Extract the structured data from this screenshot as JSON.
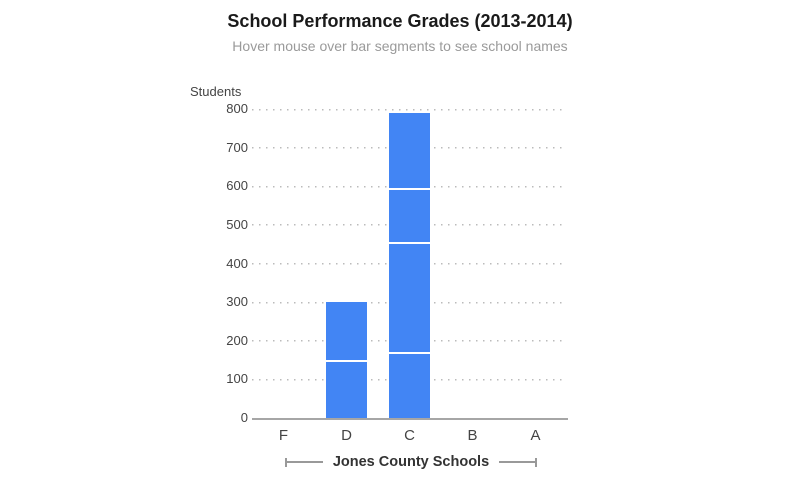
{
  "chart_data": {
    "type": "bar",
    "stacked": true,
    "title": "School Performance Grades (2013-2014)",
    "subtitle": "Hover mouse over bar segments to see school names",
    "ylabel": "Students",
    "xlabel": "Jones County Schools",
    "categories": [
      "F",
      "D",
      "C",
      "B",
      "A"
    ],
    "stacks": [
      [],
      [
        145,
        155
      ],
      [
        165,
        285,
        140,
        200
      ],
      [],
      []
    ],
    "stack_totals": [
      0,
      300,
      790,
      0,
      0
    ],
    "yticks": [
      0,
      100,
      200,
      300,
      400,
      500,
      600,
      700,
      800
    ],
    "ylim": [
      0,
      800
    ],
    "grid": "horizontal-dotted",
    "legend": "none"
  },
  "colors": {
    "bar": "#4285f4",
    "segment_divider": "#ffffff",
    "axis_line": "#a6a6a6",
    "grid_dots": "#bbbbbb",
    "tick_text": "#444444",
    "title_text": "#1a1a1a",
    "subtitle_text": "#9a9a9a",
    "xaxis_label_text": "#333333",
    "background": "#ffffff"
  }
}
